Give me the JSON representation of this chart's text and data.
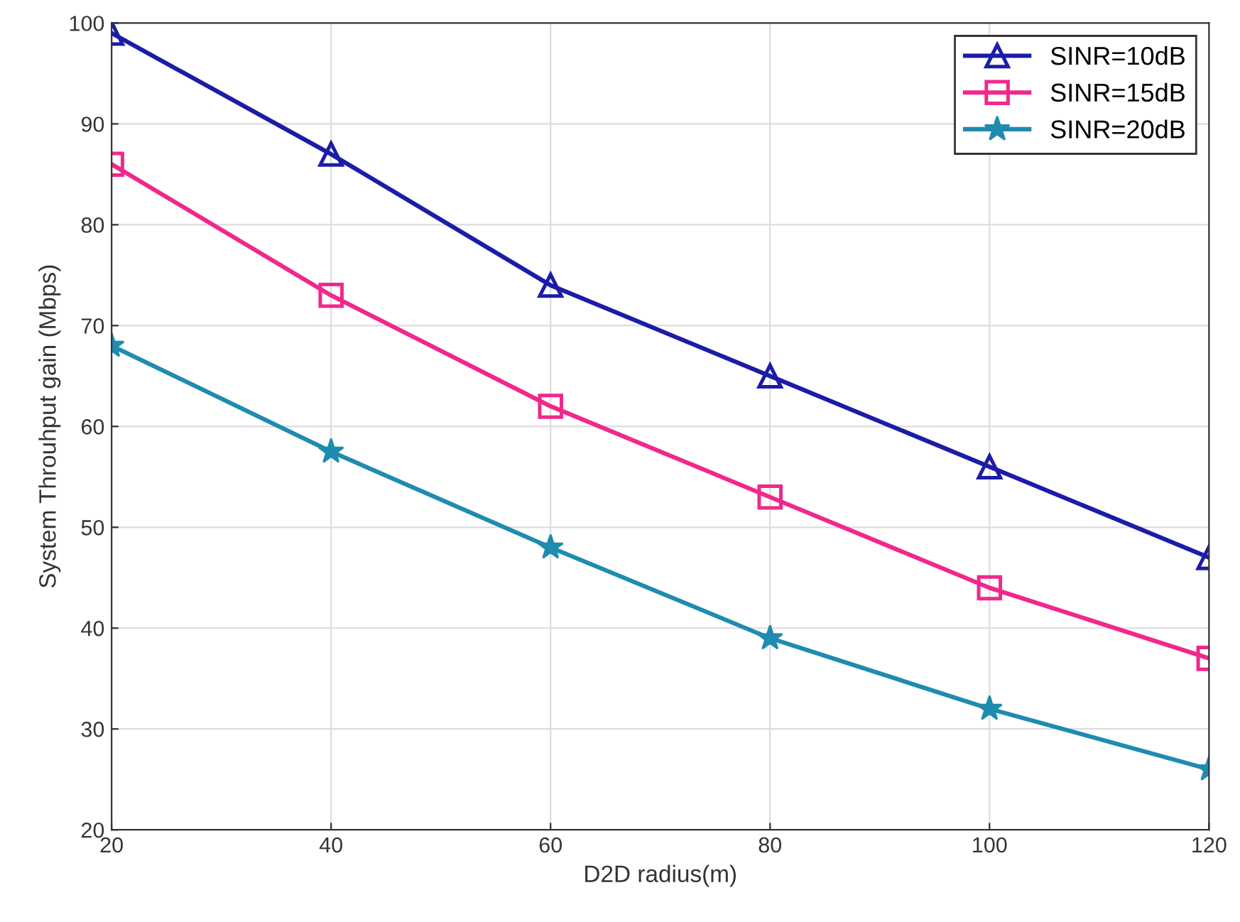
{
  "chart_data": {
    "type": "line",
    "xlabel": "D2D radius(m)",
    "ylabel": "System Throuhput gain (Mbps)",
    "x": [
      20,
      40,
      60,
      80,
      100,
      120
    ],
    "series": [
      {
        "name": "SINR=10dB",
        "color": "#1c1ca8",
        "marker": "triangle",
        "values": [
          99,
          87,
          74,
          65,
          56,
          47
        ]
      },
      {
        "name": "SINR=15dB",
        "color": "#f0288c",
        "marker": "square",
        "values": [
          86,
          73,
          62,
          53,
          44,
          37
        ]
      },
      {
        "name": "SINR=20dB",
        "color": "#1f8bb0",
        "marker": "star",
        "values": [
          68,
          57.5,
          48,
          39,
          32,
          26
        ]
      }
    ],
    "xlim": [
      20,
      120
    ],
    "xticks": [
      20,
      40,
      60,
      80,
      100,
      120
    ],
    "ylim": [
      20,
      100
    ],
    "yticks": [
      20,
      30,
      40,
      50,
      60,
      70,
      80,
      90,
      100
    ],
    "grid": true,
    "legend": "top right",
    "line_style": "solid"
  }
}
